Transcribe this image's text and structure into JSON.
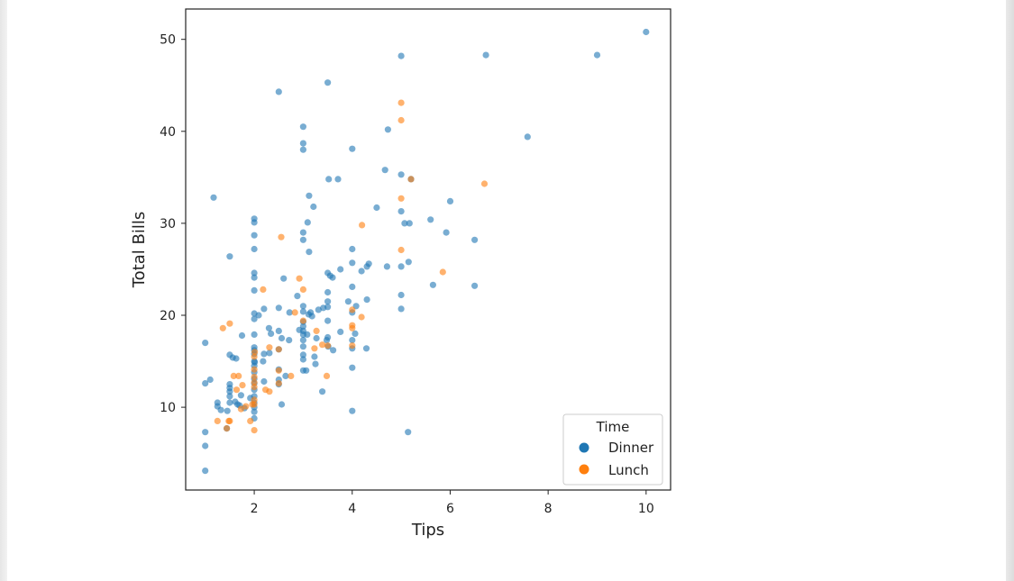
{
  "chart_data": {
    "type": "scatter",
    "title": "",
    "xlabel": "Tips",
    "ylabel": "Total Bills",
    "xlim": [
      0.6,
      10.5
    ],
    "ylim": [
      1.0,
      53.3
    ],
    "xticks": [
      2,
      4,
      6,
      8,
      10
    ],
    "yticks": [
      10,
      20,
      30,
      40,
      50
    ],
    "grid": false,
    "legend": {
      "title": "Time",
      "placement": "lower-right"
    },
    "series": [
      {
        "name": "Dinner",
        "color": "#1f77b4",
        "points": [
          [
            1.0,
            17.0
          ],
          [
            1.0,
            7.3
          ],
          [
            1.0,
            5.8
          ],
          [
            1.0,
            3.1
          ],
          [
            1.0,
            12.6
          ],
          [
            1.1,
            13.0
          ],
          [
            1.17,
            32.8
          ],
          [
            1.25,
            10.5
          ],
          [
            1.25,
            10.1
          ],
          [
            1.32,
            9.7
          ],
          [
            1.44,
            7.7
          ],
          [
            1.45,
            9.6
          ],
          [
            1.5,
            10.5
          ],
          [
            1.5,
            11.2
          ],
          [
            1.5,
            11.7
          ],
          [
            1.5,
            12.1
          ],
          [
            1.5,
            12.5
          ],
          [
            1.5,
            15.7
          ],
          [
            1.5,
            26.4
          ],
          [
            1.56,
            15.4
          ],
          [
            1.61,
            10.6
          ],
          [
            1.63,
            15.3
          ],
          [
            1.66,
            10.3
          ],
          [
            1.7,
            10.2
          ],
          [
            1.73,
            11.3
          ],
          [
            1.75,
            17.8
          ],
          [
            1.8,
            9.9
          ],
          [
            1.92,
            11.0
          ],
          [
            2.0,
            8.8
          ],
          [
            2.0,
            9.5
          ],
          [
            2.0,
            10.0
          ],
          [
            2.0,
            10.5
          ],
          [
            2.0,
            11.2
          ],
          [
            2.0,
            11.9
          ],
          [
            2.0,
            12.6
          ],
          [
            2.0,
            13.1
          ],
          [
            2.0,
            13.8
          ],
          [
            2.0,
            14.5
          ],
          [
            2.0,
            15.0
          ],
          [
            2.0,
            15.8
          ],
          [
            2.0,
            16.2
          ],
          [
            2.0,
            16.5
          ],
          [
            2.0,
            17.9
          ],
          [
            2.0,
            19.6
          ],
          [
            2.0,
            20.2
          ],
          [
            2.0,
            22.7
          ],
          [
            2.0,
            24.1
          ],
          [
            2.0,
            24.6
          ],
          [
            2.0,
            27.2
          ],
          [
            2.0,
            28.7
          ],
          [
            2.0,
            30.1
          ],
          [
            2.0,
            30.5
          ],
          [
            2.01,
            14.9
          ],
          [
            2.09,
            20.0
          ],
          [
            2.18,
            15.0
          ],
          [
            2.2,
            12.8
          ],
          [
            2.2,
            15.8
          ],
          [
            2.2,
            20.7
          ],
          [
            2.3,
            18.6
          ],
          [
            2.31,
            15.9
          ],
          [
            2.34,
            18.0
          ],
          [
            2.5,
            12.5
          ],
          [
            2.5,
            13.0
          ],
          [
            2.5,
            14.1
          ],
          [
            2.5,
            16.3
          ],
          [
            2.5,
            18.3
          ],
          [
            2.5,
            20.8
          ],
          [
            2.5,
            44.3
          ],
          [
            2.56,
            17.5
          ],
          [
            2.56,
            10.3
          ],
          [
            2.6,
            24.0
          ],
          [
            2.64,
            13.4
          ],
          [
            2.71,
            17.3
          ],
          [
            2.72,
            20.3
          ],
          [
            2.88,
            22.1
          ],
          [
            2.92,
            18.4
          ],
          [
            3.0,
            14.0
          ],
          [
            3.0,
            15.2
          ],
          [
            3.0,
            15.7
          ],
          [
            3.0,
            16.6
          ],
          [
            3.0,
            17.3
          ],
          [
            3.0,
            17.9
          ],
          [
            3.0,
            18.3
          ],
          [
            3.0,
            18.8
          ],
          [
            3.0,
            19.3
          ],
          [
            3.0,
            20.4
          ],
          [
            3.0,
            21.0
          ],
          [
            3.0,
            28.2
          ],
          [
            3.0,
            29.0
          ],
          [
            3.0,
            38.0
          ],
          [
            3.0,
            38.7
          ],
          [
            3.0,
            40.5
          ],
          [
            3.06,
            14.0
          ],
          [
            3.08,
            17.9
          ],
          [
            3.09,
            30.1
          ],
          [
            3.11,
            20.1
          ],
          [
            3.12,
            33.0
          ],
          [
            3.12,
            26.9
          ],
          [
            3.15,
            20.3
          ],
          [
            3.18,
            19.9
          ],
          [
            3.21,
            31.8
          ],
          [
            3.23,
            15.5
          ],
          [
            3.25,
            14.7
          ],
          [
            3.27,
            17.5
          ],
          [
            3.31,
            20.6
          ],
          [
            3.39,
            11.7
          ],
          [
            3.41,
            20.8
          ],
          [
            3.48,
            17.3
          ],
          [
            3.5,
            17.6
          ],
          [
            3.5,
            19.4
          ],
          [
            3.5,
            20.9
          ],
          [
            3.5,
            21.5
          ],
          [
            3.5,
            22.5
          ],
          [
            3.5,
            24.6
          ],
          [
            3.5,
            45.3
          ],
          [
            3.51,
            16.6
          ],
          [
            3.52,
            34.8
          ],
          [
            3.55,
            24.3
          ],
          [
            3.6,
            24.1
          ],
          [
            3.61,
            16.2
          ],
          [
            3.71,
            34.8
          ],
          [
            3.76,
            18.2
          ],
          [
            3.76,
            25.0
          ],
          [
            3.92,
            21.5
          ],
          [
            4.0,
            9.6
          ],
          [
            4.0,
            14.3
          ],
          [
            4.0,
            16.4
          ],
          [
            4.0,
            17.3
          ],
          [
            4.0,
            20.3
          ],
          [
            4.0,
            23.1
          ],
          [
            4.0,
            25.7
          ],
          [
            4.0,
            27.2
          ],
          [
            4.0,
            38.1
          ],
          [
            4.06,
            18.0
          ],
          [
            4.08,
            21.0
          ],
          [
            4.19,
            24.8
          ],
          [
            4.29,
            16.4
          ],
          [
            4.3,
            21.7
          ],
          [
            4.3,
            25.3
          ],
          [
            4.34,
            25.6
          ],
          [
            4.5,
            31.7
          ],
          [
            4.67,
            35.8
          ],
          [
            4.71,
            25.3
          ],
          [
            4.73,
            40.2
          ],
          [
            5.0,
            20.7
          ],
          [
            5.0,
            22.2
          ],
          [
            5.0,
            25.3
          ],
          [
            5.0,
            31.3
          ],
          [
            5.0,
            35.3
          ],
          [
            5.0,
            48.2
          ],
          [
            5.07,
            30.0
          ],
          [
            5.14,
            7.3
          ],
          [
            5.15,
            25.8
          ],
          [
            5.17,
            30.0
          ],
          [
            5.2,
            34.8
          ],
          [
            5.6,
            30.4
          ],
          [
            5.65,
            23.3
          ],
          [
            5.92,
            29.0
          ],
          [
            6.0,
            32.4
          ],
          [
            6.5,
            28.2
          ],
          [
            6.5,
            23.2
          ],
          [
            6.73,
            48.3
          ],
          [
            7.58,
            39.4
          ],
          [
            9.0,
            48.3
          ],
          [
            10.0,
            50.8
          ]
        ]
      },
      {
        "name": "Lunch",
        "color": "#ff7f0e",
        "points": [
          [
            1.25,
            8.5
          ],
          [
            1.36,
            18.6
          ],
          [
            1.44,
            7.7
          ],
          [
            1.48,
            8.5
          ],
          [
            1.5,
            8.5
          ],
          [
            1.5,
            19.1
          ],
          [
            1.58,
            13.4
          ],
          [
            1.64,
            11.9
          ],
          [
            1.68,
            13.4
          ],
          [
            1.73,
            9.8
          ],
          [
            1.76,
            12.4
          ],
          [
            1.83,
            10.1
          ],
          [
            1.92,
            8.5
          ],
          [
            1.96,
            10.3
          ],
          [
            2.0,
            7.5
          ],
          [
            2.0,
            10.3
          ],
          [
            2.0,
            10.8
          ],
          [
            2.0,
            12.2
          ],
          [
            2.0,
            12.7
          ],
          [
            2.0,
            13.3
          ],
          [
            2.0,
            14.1
          ],
          [
            2.0,
            15.5
          ],
          [
            2.01,
            16.0
          ],
          [
            2.18,
            22.8
          ],
          [
            2.23,
            11.9
          ],
          [
            2.31,
            11.7
          ],
          [
            2.31,
            16.5
          ],
          [
            2.5,
            16.3
          ],
          [
            2.5,
            12.6
          ],
          [
            2.5,
            14.0
          ],
          [
            2.55,
            28.5
          ],
          [
            2.75,
            13.4
          ],
          [
            2.83,
            20.3
          ],
          [
            2.92,
            24.0
          ],
          [
            3.0,
            22.8
          ],
          [
            3.0,
            19.4
          ],
          [
            3.23,
            16.4
          ],
          [
            3.27,
            18.3
          ],
          [
            3.39,
            16.8
          ],
          [
            3.48,
            13.4
          ],
          [
            3.5,
            16.7
          ],
          [
            4.0,
            16.7
          ],
          [
            4.0,
            18.6
          ],
          [
            4.0,
            18.9
          ],
          [
            4.0,
            20.6
          ],
          [
            4.19,
            19.8
          ],
          [
            4.2,
            29.8
          ],
          [
            5.0,
            27.1
          ],
          [
            5.0,
            32.7
          ],
          [
            5.0,
            41.2
          ],
          [
            5.0,
            43.1
          ],
          [
            5.2,
            34.8
          ],
          [
            5.85,
            24.7
          ],
          [
            6.7,
            34.3
          ]
        ]
      }
    ]
  }
}
